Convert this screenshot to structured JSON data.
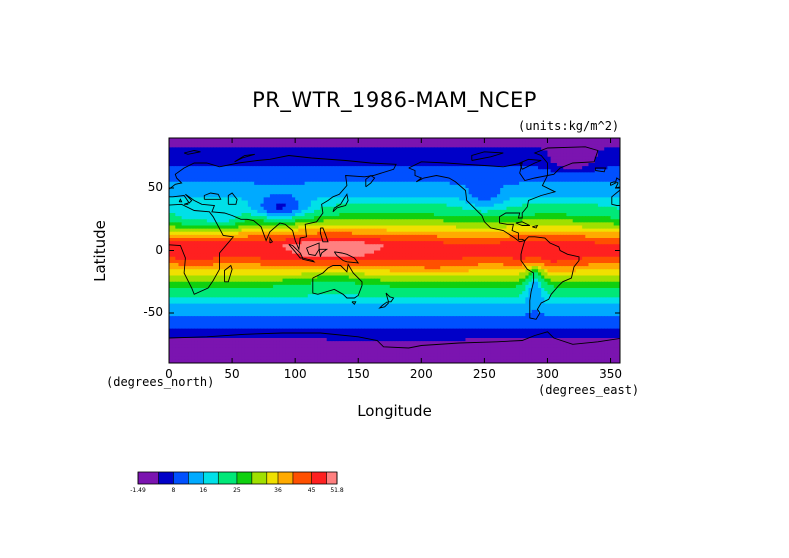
{
  "chart_data": {
    "type": "heatmap",
    "title": "PR_WTR_1986-MAM_NCEP",
    "units": "(units:kg/m^2)",
    "xlabel": "Longitude",
    "ylabel": "Latitude",
    "x_units": "(degrees_east)",
    "y_units": "(degrees_north)",
    "xlim": [
      0,
      357.5
    ],
    "ylim": [
      -90,
      90
    ],
    "x_ticks": [
      0,
      50,
      100,
      150,
      200,
      250,
      300,
      350
    ],
    "y_ticks": [
      50,
      0,
      -50
    ],
    "colorbar": {
      "min": -1.49,
      "max": 51.8,
      "labels": [
        "-1.49",
        "8",
        "16",
        "25",
        "36",
        "45",
        "51.8"
      ],
      "label_values": [
        -1.49,
        8,
        16,
        25,
        36,
        45,
        51.8
      ],
      "levels": [
        -1.49,
        4,
        8,
        12,
        16,
        20,
        25,
        29,
        33,
        36,
        40,
        45,
        49,
        51.8
      ],
      "colors": [
        "#7b14b0",
        "#0000c8",
        "#0050ff",
        "#00aaff",
        "#00e0e8",
        "#00e878",
        "#10d010",
        "#a0e000",
        "#f0e000",
        "#ffaa00",
        "#ff5000",
        "#ff2020",
        "#ff8080"
      ]
    },
    "field_description": "Zonal bands: polar lows near 0-8, tropics 40-50; maxima over Maritime Continent, Amazon, central Africa",
    "zonal_profile": [
      {
        "lat": 90,
        "value": 2
      },
      {
        "lat": 75,
        "value": 6
      },
      {
        "lat": 60,
        "value": 10
      },
      {
        "lat": 45,
        "value": 15
      },
      {
        "lat": 30,
        "value": 24
      },
      {
        "lat": 15,
        "value": 36
      },
      {
        "lat": 5,
        "value": 46
      },
      {
        "lat": -5,
        "value": 45
      },
      {
        "lat": -15,
        "value": 36
      },
      {
        "lat": -30,
        "value": 24
      },
      {
        "lat": -45,
        "value": 15
      },
      {
        "lat": -60,
        "value": 9
      },
      {
        "lat": -75,
        "value": 4
      },
      {
        "lat": -90,
        "value": 1
      }
    ]
  }
}
